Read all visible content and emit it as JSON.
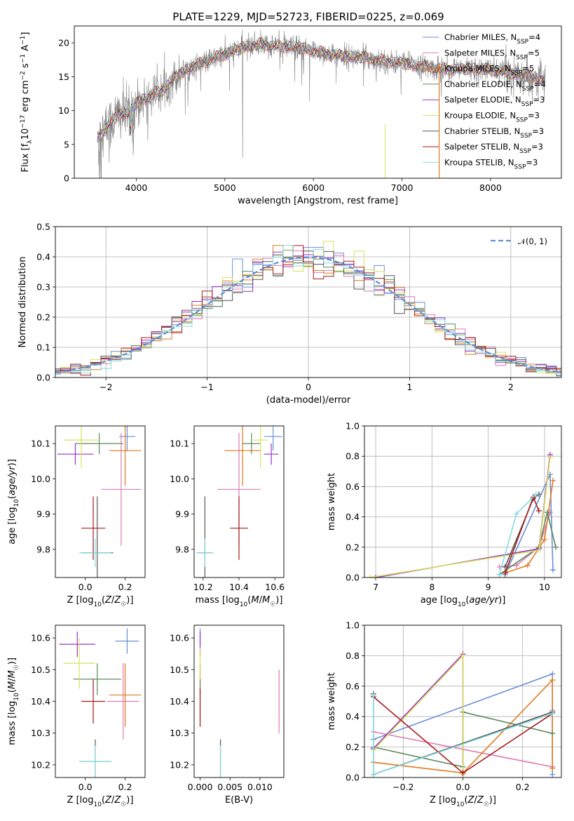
{
  "figure": {
    "title": "PLATE=1229, MJD=52723, FIBERID=0225, z=0.069"
  },
  "colors": {
    "Chabrier MILES": "#6a8fd8",
    "Salpeter MILES": "#e07bb4",
    "Kroupa MILES": "#e07a1f",
    "Chabrier ELODIE": "#5c8a5c",
    "Salpeter ELODIE": "#9b30c4",
    "Kroupa ELODIE": "#d8e25c",
    "Chabrier STELIB": "#555555",
    "Salpeter STELIB": "#a81c1c",
    "Kroupa STELIB": "#86dbe0",
    "data": "#808080",
    "normal": "#5a8fd6"
  },
  "panels": {
    "spectrum": {
      "ylabel_main": "Flux [f",
      "ylabel_lambda": "λ",
      "ylabel_mid": "10",
      "ylabel_exp1": "−17",
      "ylabel_rest": " erg cm",
      "ylabel_exp2": "−2",
      "ylabel_s": " s",
      "ylabel_exp3": "−1",
      "ylabel_A": " A",
      "ylabel_exp4": "−1",
      "ylabel_end": "]",
      "xlabel": "wavelength [Angstrom, rest frame]"
    },
    "residuals": {
      "ylabel": "Normed distribution",
      "xlabel": "(data-model)/error",
      "legend": "𝒩(0, 1)"
    },
    "ageZ": {
      "ylabel": "age  [log10(age/yr)]",
      "xlabel": "Z [log10(Z/Z☉)]"
    },
    "ageMass": {
      "xlabel": "mass [log10(M/M☉)]"
    },
    "mwAge": {
      "ylabel": "mass weight",
      "xlabel": "age  [log10(age/yr)]"
    },
    "massZ": {
      "ylabel": "mass [log10(M/M☉)]",
      "xlabel": "Z [log10(Z/Z☉)]"
    },
    "massEBV": {
      "xlabel": "E(B-V)"
    },
    "mwZ": {
      "ylabel": "mass weight",
      "xlabel": "Z [log10(Z/Z☉)]"
    }
  },
  "chart_data": [
    {
      "type": "line",
      "title": "PLATE=1229, MJD=52723, FIBERID=0225, z=0.069",
      "xlabel": "wavelength [Angstrom, rest frame]",
      "ylabel": "Flux [fλ 10^-17 erg cm^-2 s^-1 A^-1]",
      "xlim": [
        3300,
        8800
      ],
      "ylim": [
        0,
        22.5
      ],
      "xticks": [
        4000,
        5000,
        6000,
        7000,
        8000
      ],
      "yticks": [
        0,
        5,
        10,
        15,
        20
      ],
      "grid": false,
      "legend_position": "top-right",
      "legend": [
        {
          "name": "Chabrier MILES",
          "label": "Chabrier MILES, N",
          "sub": "SSP",
          "tail": "=4"
        },
        {
          "name": "Salpeter MILES",
          "label": "Salpeter MILES, N",
          "sub": "SSP",
          "tail": "=5"
        },
        {
          "name": "Kroupa MILES",
          "label": "Kroupa MILES, N",
          "sub": "SSP",
          "tail": "=5"
        },
        {
          "name": "Chabrier ELODIE",
          "label": "Chabrier ELODIE, N",
          "sub": "SSP",
          "tail": "=4"
        },
        {
          "name": "Salpeter ELODIE",
          "label": "Salpeter ELODIE, N",
          "sub": "SSP",
          "tail": "=3"
        },
        {
          "name": "Kroupa ELODIE",
          "label": "Kroupa ELODIE, N",
          "sub": "SSP",
          "tail": "=3"
        },
        {
          "name": "Chabrier STELIB",
          "label": "Chabrier STELIB, N",
          "sub": "SSP",
          "tail": "=3"
        },
        {
          "name": "Salpeter STELIB",
          "label": "Salpeter STELIB, N",
          "sub": "SSP",
          "tail": "=3"
        },
        {
          "name": "Kroupa STELIB",
          "label": "Kroupa STELIB, N",
          "sub": "SSP",
          "tail": "=3"
        }
      ],
      "continuum": {
        "x": [
          3560,
          3700,
          3800,
          3900,
          4000,
          4100,
          4200,
          4300,
          4400,
          4500,
          4600,
          4800,
          5000,
          5200,
          5400,
          5600,
          5800,
          6000,
          6200,
          6400,
          6600,
          6800,
          7000,
          7200,
          7400,
          7600,
          7800,
          8000,
          8200,
          8400,
          8600
        ],
        "y": [
          6.0,
          8.0,
          9.5,
          9.5,
          11.0,
          11.8,
          12.5,
          13.0,
          14.5,
          15.5,
          16.3,
          17.3,
          18.3,
          19.3,
          19.8,
          19.5,
          19.3,
          18.8,
          18.3,
          18.0,
          17.8,
          17.3,
          17.0,
          16.6,
          16.2,
          16.1,
          16.2,
          16.0,
          15.6,
          15.2,
          14.6
        ]
      }
    },
    {
      "type": "bar",
      "xlabel": "(data-model)/error",
      "ylabel": "Normed distribution",
      "xlim": [
        -2.5,
        2.5
      ],
      "ylim": [
        0,
        0.5
      ],
      "xticks": [
        -2,
        -1,
        0,
        1,
        2
      ],
      "yticks": [
        0.0,
        0.1,
        0.2,
        0.3,
        0.4,
        0.5
      ],
      "grid": true,
      "bin_width": 0.1,
      "series_note": "step histograms, one per model, compared with N(0,1)",
      "reference_curve": {
        "name": "𝒩(0, 1)",
        "mean": 0,
        "sigma": 1
      }
    },
    {
      "type": "scatter",
      "xlabel": "Z [log10(Z/Z☉)]",
      "ylabel": "age  [log10(age/yr)]",
      "xlim": [
        -0.15,
        0.3
      ],
      "ylim": [
        9.72,
        10.15
      ],
      "xticks": [
        0.0,
        0.2
      ],
      "yticks": [
        9.8,
        9.9,
        10.0,
        10.1
      ],
      "points": [
        {
          "model": "Chabrier MILES",
          "x": 0.21,
          "xerr": 0.04,
          "y": 10.12,
          "yerr": 0.04
        },
        {
          "model": "Salpeter MILES",
          "x": 0.18,
          "xerr": 0.1,
          "y": 9.97,
          "yerr": 0.16
        },
        {
          "model": "Kroupa MILES",
          "x": 0.2,
          "xerr": 0.08,
          "y": 10.08,
          "yerr": 0.1
        },
        {
          "model": "Chabrier ELODIE",
          "x": 0.07,
          "xerr": 0.12,
          "y": 10.1,
          "yerr": 0.03
        },
        {
          "model": "Salpeter ELODIE",
          "x": -0.05,
          "xerr": 0.09,
          "y": 10.07,
          "yerr": 0.03
        },
        {
          "model": "Kroupa ELODIE",
          "x": -0.02,
          "xerr": 0.09,
          "y": 10.11,
          "yerr": 0.08
        },
        {
          "model": "Chabrier STELIB",
          "x": 0.06,
          "xerr": 0.08,
          "y": 9.79,
          "yerr": 0.16
        },
        {
          "model": "Salpeter STELIB",
          "x": 0.04,
          "xerr": 0.06,
          "y": 9.86,
          "yerr": 0.09
        },
        {
          "model": "Kroupa STELIB",
          "x": 0.05,
          "xerr": 0.08,
          "y": 9.79,
          "yerr": 0.04
        }
      ]
    },
    {
      "type": "scatter",
      "xlabel": "mass [log10(M/M☉)]",
      "ylabel": "",
      "xlim": [
        10.15,
        10.65
      ],
      "ylim": [
        9.72,
        10.15
      ],
      "xticks": [
        10.2,
        10.4,
        10.6
      ],
      "yticks": [
        9.8,
        9.9,
        10.0,
        10.1
      ],
      "points": [
        {
          "model": "Chabrier MILES",
          "x": 10.59,
          "xerr": 0.05,
          "y": 10.12,
          "yerr": 0.04
        },
        {
          "model": "Salpeter MILES",
          "x": 10.4,
          "xerr": 0.12,
          "y": 9.97,
          "yerr": 0.16
        },
        {
          "model": "Kroupa MILES",
          "x": 10.42,
          "xerr": 0.1,
          "y": 10.08,
          "yerr": 0.1
        },
        {
          "model": "Chabrier ELODIE",
          "x": 10.47,
          "xerr": 0.05,
          "y": 10.1,
          "yerr": 0.03
        },
        {
          "model": "Salpeter ELODIE",
          "x": 10.58,
          "xerr": 0.04,
          "y": 10.07,
          "yerr": 0.03
        },
        {
          "model": "Kroupa ELODIE",
          "x": 10.52,
          "xerr": 0.04,
          "y": 10.11,
          "yerr": 0.08
        },
        {
          "model": "Chabrier STELIB",
          "x": 10.21,
          "xerr": 0.04,
          "y": 9.79,
          "yerr": 0.16
        },
        {
          "model": "Salpeter STELIB",
          "x": 10.4,
          "xerr": 0.05,
          "y": 9.86,
          "yerr": 0.09
        },
        {
          "model": "Kroupa STELIB",
          "x": 10.21,
          "xerr": 0.05,
          "y": 9.79,
          "yerr": 0.04
        }
      ]
    },
    {
      "type": "line",
      "xlabel": "age  [log10(age/yr)]",
      "ylabel": "mass weight",
      "xlim": [
        6.8,
        10.3
      ],
      "ylim": [
        0,
        1.0
      ],
      "xticks": [
        7,
        8,
        9,
        10
      ],
      "yticks": [
        0.0,
        0.2,
        0.4,
        0.6,
        0.8,
        1.0
      ],
      "grid": true,
      "series": [
        {
          "name": "Chabrier MILES",
          "x": [
            9.3,
            10.1,
            10.15
          ],
          "y": [
            0.02,
            0.68,
            0.05
          ]
        },
        {
          "name": "Salpeter MILES",
          "x": [
            9.2,
            9.5,
            9.9,
            10.1
          ],
          "y": [
            0.07,
            0.08,
            0.2,
            0.43
          ]
        },
        {
          "name": "Kroupa MILES",
          "x": [
            9.3,
            9.7,
            10.0,
            10.15
          ],
          "y": [
            0.03,
            0.08,
            0.25,
            0.64
          ]
        },
        {
          "name": "Chabrier ELODIE",
          "x": [
            9.2,
            9.9,
            10.05,
            10.2
          ],
          "y": [
            0.02,
            0.2,
            0.43,
            0.2
          ]
        },
        {
          "name": "Salpeter ELODIE",
          "x": [
            7.0,
            9.9,
            10.1
          ],
          "y": [
            0.0,
            0.19,
            0.81
          ]
        },
        {
          "name": "Kroupa ELODIE",
          "x": [
            6.9,
            9.9,
            10.1
          ],
          "y": [
            0.0,
            0.18,
            0.79
          ]
        },
        {
          "name": "Chabrier STELIB",
          "x": [
            9.3,
            9.8,
            9.9
          ],
          "y": [
            0.07,
            0.52,
            0.55
          ]
        },
        {
          "name": "Salpeter STELIB",
          "x": [
            9.3,
            9.8,
            9.9
          ],
          "y": [
            0.03,
            0.53,
            0.44
          ]
        },
        {
          "name": "Kroupa STELIB",
          "x": [
            9.2,
            9.5,
            9.85
          ],
          "y": [
            0.02,
            0.42,
            0.55
          ]
        }
      ]
    },
    {
      "type": "scatter",
      "xlabel": "Z [log10(Z/Z☉)]",
      "ylabel": "mass [log10(M/M☉)]",
      "xlim": [
        -0.15,
        0.3
      ],
      "ylim": [
        10.16,
        10.64
      ],
      "xticks": [
        0.0,
        0.2
      ],
      "yticks": [
        10.2,
        10.3,
        10.4,
        10.5,
        10.6
      ],
      "points": [
        {
          "model": "Chabrier MILES",
          "x": 0.21,
          "xerr": 0.06,
          "y": 10.59,
          "yerr": 0.04
        },
        {
          "model": "Salpeter MILES",
          "x": 0.19,
          "xerr": 0.08,
          "y": 10.4,
          "yerr": 0.12
        },
        {
          "model": "Kroupa MILES",
          "x": 0.2,
          "xerr": 0.08,
          "y": 10.42,
          "yerr": 0.1
        },
        {
          "model": "Chabrier ELODIE",
          "x": 0.06,
          "xerr": 0.12,
          "y": 10.47,
          "yerr": 0.05
        },
        {
          "model": "Salpeter ELODIE",
          "x": -0.04,
          "xerr": 0.09,
          "y": 10.58,
          "yerr": 0.04
        },
        {
          "model": "Kroupa ELODIE",
          "x": -0.03,
          "xerr": 0.08,
          "y": 10.52,
          "yerr": 0.08
        },
        {
          "model": "Chabrier STELIB",
          "x": 0.05,
          "xerr": 0.08,
          "y": 10.21,
          "yerr": 0.07
        },
        {
          "model": "Salpeter STELIB",
          "x": 0.04,
          "xerr": 0.06,
          "y": 10.4,
          "yerr": 0.07
        },
        {
          "model": "Kroupa STELIB",
          "x": 0.05,
          "xerr": 0.08,
          "y": 10.21,
          "yerr": 0.05
        }
      ]
    },
    {
      "type": "scatter",
      "xlabel": "E(B-V)",
      "ylabel": "",
      "xlim": [
        -0.001,
        0.014
      ],
      "ylim": [
        10.16,
        10.64
      ],
      "xticks": [
        0.0,
        0.005,
        0.01
      ],
      "xticklabels": [
        "0.000",
        "0.005",
        "0.010"
      ],
      "yticks": [
        10.2,
        10.3,
        10.4,
        10.5,
        10.6
      ],
      "points": [
        {
          "model": "Chabrier MILES",
          "x": 0.0,
          "y": 10.59,
          "yerr": 0.04
        },
        {
          "model": "Salpeter MILES",
          "x": 0.0132,
          "y": 10.4,
          "yerr": 0.1
        },
        {
          "model": "Kroupa MILES",
          "x": 0.0,
          "y": 10.42,
          "yerr": 0.1
        },
        {
          "model": "Chabrier ELODIE",
          "x": 0.0,
          "y": 10.47,
          "yerr": 0.05
        },
        {
          "model": "Salpeter ELODIE",
          "x": 0.0,
          "y": 10.58,
          "yerr": 0.04
        },
        {
          "model": "Kroupa ELODIE",
          "x": 0.0,
          "y": 10.52,
          "yerr": 0.05
        },
        {
          "model": "Chabrier STELIB",
          "x": 0.0034,
          "y": 10.22,
          "yerr": 0.06
        },
        {
          "model": "Salpeter STELIB",
          "x": 0.0,
          "y": 10.38,
          "yerr": 0.06
        },
        {
          "model": "Kroupa STELIB",
          "x": 0.0034,
          "y": 10.21,
          "yerr": 0.05
        }
      ]
    },
    {
      "type": "line",
      "xlabel": "Z [log10(Z/Z☉)]",
      "ylabel": "mass weight",
      "xlim": [
        -0.33,
        0.33
      ],
      "ylim": [
        0,
        1.0
      ],
      "xticks": [
        -0.2,
        0.0,
        0.2
      ],
      "yticks": [
        0.0,
        0.2,
        0.4,
        0.6,
        0.8,
        1.0
      ],
      "grid": true,
      "series": [
        {
          "name": "Chabrier MILES",
          "x": [
            -0.3,
            0.3,
            0.3
          ],
          "y": [
            0.25,
            0.68,
            0.02
          ]
        },
        {
          "name": "Salpeter MILES",
          "x": [
            -0.3,
            0.3,
            0.3
          ],
          "y": [
            0.3,
            0.07,
            0.44
          ]
        },
        {
          "name": "Kroupa MILES",
          "x": [
            -0.3,
            0.0,
            0.3,
            0.3
          ],
          "y": [
            0.1,
            0.03,
            0.64,
            0.06
          ]
        },
        {
          "name": "Chabrier ELODIE",
          "x": [
            -0.3,
            0.0,
            0.0,
            0.3
          ],
          "y": [
            0.2,
            0.07,
            0.43,
            0.29
          ]
        },
        {
          "name": "Salpeter ELODIE",
          "x": [
            -0.3,
            0.0,
            0.0
          ],
          "y": [
            0.19,
            0.81,
            0.02
          ]
        },
        {
          "name": "Kroupa ELODIE",
          "x": [
            -0.3,
            0.0,
            0.0
          ],
          "y": [
            0.18,
            0.8,
            0.02
          ]
        },
        {
          "name": "Chabrier STELIB",
          "x": [
            -0.3,
            -0.3,
            0.3
          ],
          "y": [
            0.55,
            0.02,
            0.43
          ]
        },
        {
          "name": "Salpeter STELIB",
          "x": [
            -0.3,
            0.0,
            0.3
          ],
          "y": [
            0.53,
            0.03,
            0.42
          ]
        },
        {
          "name": "Kroupa STELIB",
          "x": [
            -0.3,
            -0.3,
            0.3
          ],
          "y": [
            0.54,
            0.02,
            0.42
          ]
        }
      ]
    }
  ]
}
